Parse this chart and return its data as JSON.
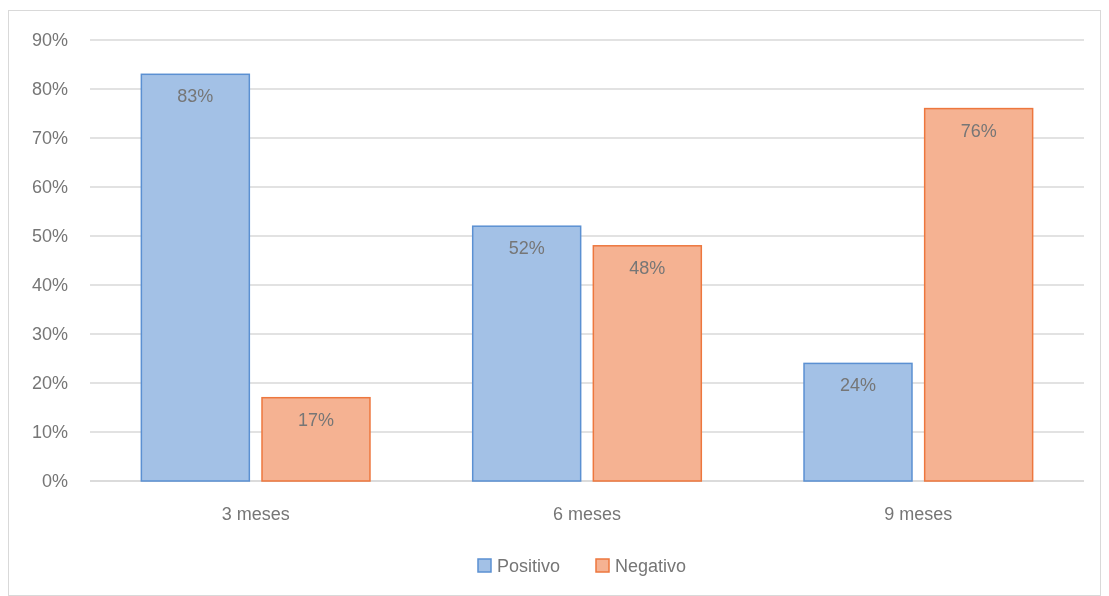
{
  "chart_data": {
    "type": "bar",
    "categories": [
      "3 meses",
      "6 meses",
      "9 meses"
    ],
    "series": [
      {
        "name": "Positivo",
        "color": "#a3c1e6",
        "values": [
          83,
          52,
          24
        ],
        "value_labels": [
          "83%",
          "52%",
          "24%"
        ]
      },
      {
        "name": "Negativo",
        "color": "#f5b292",
        "values": [
          17,
          48,
          76
        ],
        "value_labels": [
          "17%",
          "48%",
          "76%"
        ]
      }
    ],
    "ylim": [
      0,
      90
    ],
    "yticks": [
      {
        "value": 0,
        "label": "0%"
      },
      {
        "value": 10,
        "label": "10%"
      },
      {
        "value": 20,
        "label": "20%"
      },
      {
        "value": 30,
        "label": "30%"
      },
      {
        "value": 40,
        "label": "40%"
      },
      {
        "value": 50,
        "label": "50%"
      },
      {
        "value": 60,
        "label": "60%"
      },
      {
        "value": 70,
        "label": "70%"
      },
      {
        "value": 80,
        "label": "80%"
      },
      {
        "value": 90,
        "label": "90%"
      }
    ],
    "grid": "y",
    "legend": "bottom"
  }
}
